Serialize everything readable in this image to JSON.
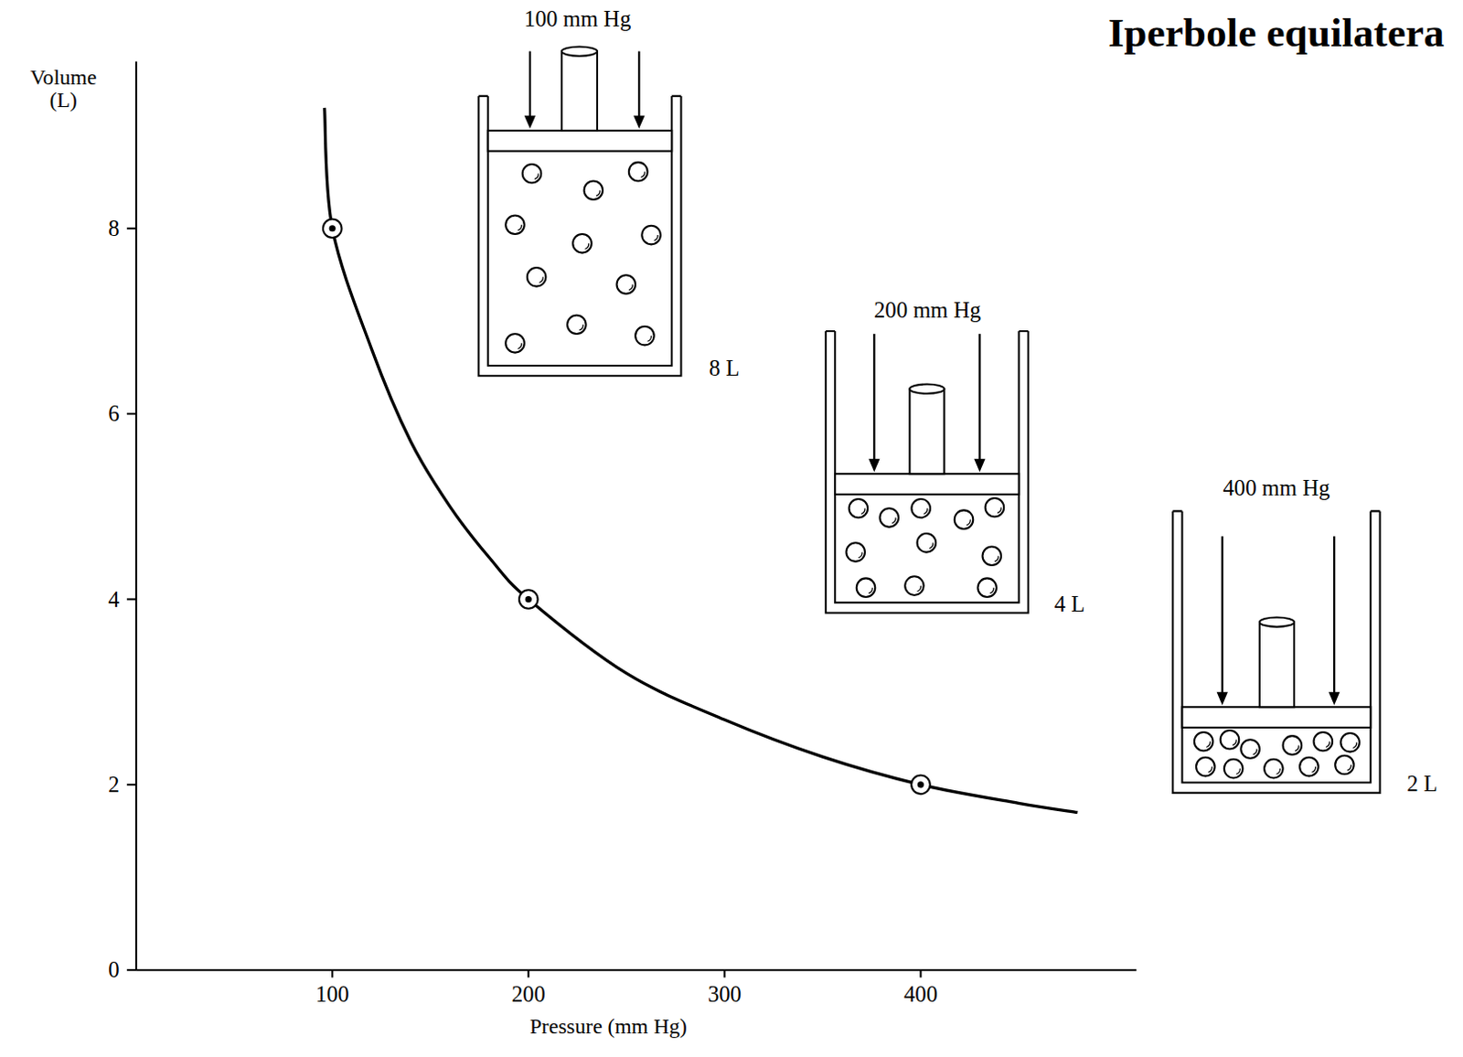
{
  "chart_data": {
    "type": "line",
    "title": "Iperbole equilatera",
    "x_label": "Pressure (mm Hg)",
    "y_label": "Volume (L)",
    "xlim": [
      0,
      510
    ],
    "ylim": [
      0,
      9.8
    ],
    "xticks": [
      100,
      200,
      300,
      400
    ],
    "yticks": [
      0,
      2,
      4,
      6,
      8
    ],
    "grid": false,
    "series": [
      {
        "type": "line",
        "color": "#000000",
        "line_style": "solid",
        "marker": "none",
        "x": [
          96,
          100,
          120,
          140,
          160,
          180,
          200,
          250,
          300,
          350,
          400,
          450,
          480
        ],
        "values": [
          9.3,
          8,
          6.7,
          5.7,
          5.0,
          4.45,
          4,
          3.2,
          2.7,
          2.3,
          2,
          1.8,
          1.7
        ]
      },
      {
        "type": "scatter",
        "color": "#000000",
        "marker": "target",
        "x": [
          100,
          200,
          400
        ],
        "values": [
          8,
          4,
          2
        ]
      }
    ],
    "annotations": [
      {
        "pressure": "100 mm Hg",
        "volume": "8 L"
      },
      {
        "pressure": "200 mm Hg",
        "volume": "4 L"
      },
      {
        "pressure": "400 mm Hg",
        "volume": "2 L"
      }
    ]
  }
}
